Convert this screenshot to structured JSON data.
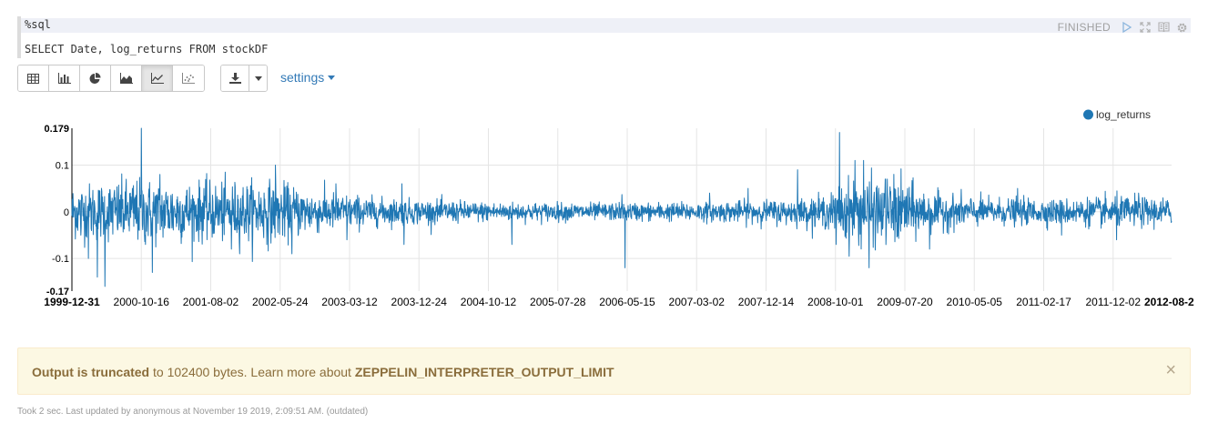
{
  "editor": {
    "line1": "%sql",
    "line2": "SELECT Date, log_returns FROM stockDF",
    "status": "FINISHED",
    "icons": [
      "run-icon",
      "expand-icon",
      "book-icon",
      "gear-icon"
    ]
  },
  "toolbar": {
    "buttons": [
      "table-icon",
      "bar-chart-icon",
      "pie-chart-icon",
      "area-chart-icon",
      "line-chart-icon",
      "scatter-chart-icon"
    ],
    "active": "line-chart-icon"
  },
  "download": {
    "icon": "download-icon",
    "caret": "caret-down-icon"
  },
  "settings_label": "settings",
  "chart_data": {
    "type": "line",
    "series": [
      {
        "name": "log_returns",
        "color": "#1f77b4"
      }
    ],
    "legend_position": "top-right",
    "ylim": [
      -0.17,
      0.179
    ],
    "yticks": [
      "0.179",
      "0.1",
      "0",
      "-0.1",
      "-0.17"
    ],
    "ytick_values": [
      0.179,
      0.1,
      0,
      -0.1,
      -0.17
    ],
    "xticks": [
      "1999-12-31",
      "2000-10-16",
      "2001-08-02",
      "2002-05-24",
      "2003-03-12",
      "2003-12-24",
      "2004-10-12",
      "2005-07-28",
      "2006-05-15",
      "2007-03-02",
      "2007-12-14",
      "2008-10-01",
      "2009-07-20",
      "2010-05-05",
      "2011-02-17",
      "2011-12-02",
      "2012-08-2"
    ],
    "bold_xticks": [
      "1999-12-31",
      "2012-08-2"
    ],
    "grid": true,
    "volatility_profile": [
      [
        0.0,
        0.028
      ],
      [
        0.06,
        0.034
      ],
      [
        0.12,
        0.03
      ],
      [
        0.18,
        0.032
      ],
      [
        0.22,
        0.022
      ],
      [
        0.28,
        0.014
      ],
      [
        0.38,
        0.01
      ],
      [
        0.48,
        0.009
      ],
      [
        0.58,
        0.01
      ],
      [
        0.66,
        0.013
      ],
      [
        0.69,
        0.018
      ],
      [
        0.7,
        0.032
      ],
      [
        0.75,
        0.036
      ],
      [
        0.78,
        0.02
      ],
      [
        0.83,
        0.014
      ],
      [
        0.9,
        0.013
      ],
      [
        0.95,
        0.016
      ],
      [
        1.0,
        0.014
      ]
    ],
    "spikes": [
      [
        0.008,
        -0.05
      ],
      [
        0.015,
        -0.1
      ],
      [
        0.023,
        -0.14
      ],
      [
        0.03,
        -0.16
      ],
      [
        0.063,
        0.179
      ],
      [
        0.067,
        -0.07
      ],
      [
        0.073,
        -0.13
      ],
      [
        0.08,
        0.08
      ],
      [
        0.12,
        0.05
      ],
      [
        0.145,
        -0.08
      ],
      [
        0.185,
        0.1
      ],
      [
        0.2,
        -0.09
      ],
      [
        0.24,
        0.06
      ],
      [
        0.25,
        -0.06
      ],
      [
        0.3,
        0.06
      ],
      [
        0.302,
        -0.07
      ],
      [
        0.4,
        -0.07
      ],
      [
        0.5,
        0.037
      ],
      [
        0.503,
        -0.12
      ],
      [
        0.58,
        0.04
      ],
      [
        0.615,
        0.05
      ],
      [
        0.66,
        0.09
      ],
      [
        0.695,
        -0.07
      ],
      [
        0.698,
        0.17
      ],
      [
        0.71,
        -0.05
      ],
      [
        0.712,
        0.11
      ],
      [
        0.72,
        0.11
      ],
      [
        0.725,
        -0.12
      ],
      [
        0.74,
        0.07
      ],
      [
        0.76,
        0.05
      ],
      [
        0.78,
        -0.08
      ],
      [
        0.86,
        0.05
      ],
      [
        0.9,
        -0.05
      ],
      [
        0.95,
        -0.06
      ],
      [
        0.97,
        0.04
      ]
    ]
  },
  "alert": {
    "bold_lead": "Output is truncated",
    "text": " to 102400 bytes. Learn more about ",
    "bold_tail": "ZEPPELIN_INTERPRETER_OUTPUT_LIMIT",
    "close": "×"
  },
  "footer": "Took 2 sec. Last updated by anonymous at November 19 2019, 2:09:51 AM. (outdated)"
}
